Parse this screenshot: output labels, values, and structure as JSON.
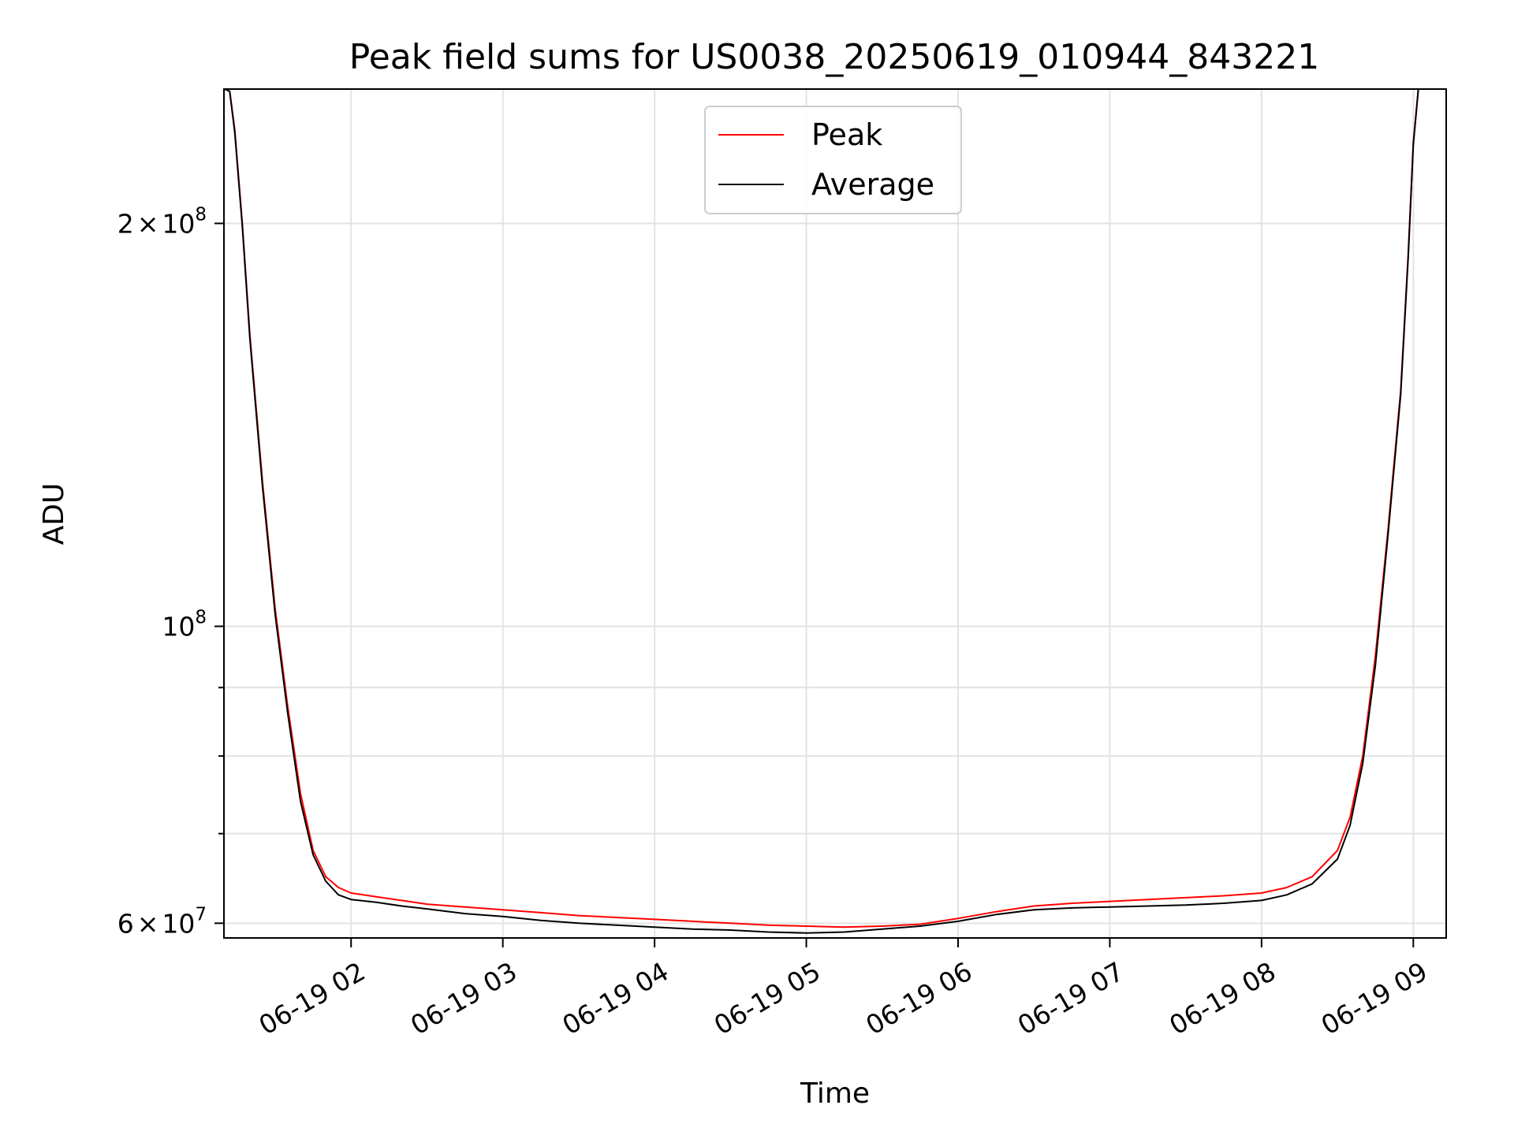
{
  "chart_data": {
    "type": "line",
    "title": "Peak field sums for US0038_20250619_010944_843221",
    "xlabel": "Time",
    "ylabel": "ADU",
    "y_scale": "log",
    "x_range": [
      "06-19 01:09:44",
      "06-19 09:13:00"
    ],
    "ylim": [
      58500000,
      252000000
    ],
    "grid": true,
    "legend_position": "upper-center",
    "x_ticks": [
      {
        "t": "06-19 02:00",
        "label": "06-19 02"
      },
      {
        "t": "06-19 03:00",
        "label": "06-19 03"
      },
      {
        "t": "06-19 04:00",
        "label": "06-19 04"
      },
      {
        "t": "06-19 05:00",
        "label": "06-19 05"
      },
      {
        "t": "06-19 06:00",
        "label": "06-19 06"
      },
      {
        "t": "06-19 07:00",
        "label": "06-19 07"
      },
      {
        "t": "06-19 08:00",
        "label": "06-19 08"
      },
      {
        "t": "06-19 09:00",
        "label": "06-19 09"
      }
    ],
    "y_major_ticks": [
      {
        "value": 60000000,
        "mantissa": "6",
        "times": "×",
        "base": "10",
        "exp": "7"
      },
      {
        "value": 100000000,
        "mantissa": "",
        "times": "",
        "base": "10",
        "exp": "8"
      },
      {
        "value": 200000000,
        "mantissa": "2",
        "times": "×",
        "base": "10",
        "exp": "8"
      }
    ],
    "y_minor_ticks": [
      70000000,
      80000000,
      90000000
    ],
    "series": [
      {
        "name": "Peak",
        "color": "#ff0000",
        "x": [
          "06-19 01:10",
          "06-19 01:12",
          "06-19 01:14",
          "06-19 01:17",
          "06-19 01:20",
          "06-19 01:25",
          "06-19 01:30",
          "06-19 01:35",
          "06-19 01:40",
          "06-19 01:45",
          "06-19 01:50",
          "06-19 01:55",
          "06-19 02:00",
          "06-19 02:10",
          "06-19 02:20",
          "06-19 02:30",
          "06-19 02:45",
          "06-19 03:00",
          "06-19 03:15",
          "06-19 03:30",
          "06-19 03:45",
          "06-19 04:00",
          "06-19 04:15",
          "06-19 04:30",
          "06-19 04:45",
          "06-19 05:00",
          "06-19 05:15",
          "06-19 05:30",
          "06-19 05:45",
          "06-19 06:00",
          "06-19 06:15",
          "06-19 06:30",
          "06-19 06:45",
          "06-19 07:00",
          "06-19 07:15",
          "06-19 07:30",
          "06-19 07:45",
          "06-19 08:00",
          "06-19 08:10",
          "06-19 08:20",
          "06-19 08:30",
          "06-19 08:35",
          "06-19 08:40",
          "06-19 08:45",
          "06-19 08:50",
          "06-19 08:55",
          "06-19 08:58",
          "06-19 09:00",
          "06-19 09:02"
        ],
        "y": [
          252000000,
          251000000,
          235000000,
          200000000,
          165000000,
          128000000,
          103000000,
          87000000,
          75000000,
          68000000,
          65000000,
          63800000,
          63200000,
          62800000,
          62400000,
          62000000,
          61700000,
          61400000,
          61100000,
          60800000,
          60600000,
          60400000,
          60200000,
          60000000,
          59800000,
          59700000,
          59600000,
          59700000,
          59900000,
          60500000,
          61200000,
          61800000,
          62100000,
          62300000,
          62500000,
          62700000,
          62900000,
          63200000,
          63800000,
          65000000,
          68000000,
          72000000,
          80000000,
          95000000,
          118000000,
          150000000,
          190000000,
          230000000,
          252000000
        ]
      },
      {
        "name": "Average",
        "color": "#000000",
        "x": [
          "06-19 01:10",
          "06-19 01:12",
          "06-19 01:14",
          "06-19 01:17",
          "06-19 01:20",
          "06-19 01:25",
          "06-19 01:30",
          "06-19 01:35",
          "06-19 01:40",
          "06-19 01:45",
          "06-19 01:50",
          "06-19 01:55",
          "06-19 02:00",
          "06-19 02:10",
          "06-19 02:20",
          "06-19 02:30",
          "06-19 02:45",
          "06-19 03:00",
          "06-19 03:15",
          "06-19 03:30",
          "06-19 03:45",
          "06-19 04:00",
          "06-19 04:15",
          "06-19 04:30",
          "06-19 04:45",
          "06-19 05:00",
          "06-19 05:15",
          "06-19 05:30",
          "06-19 05:45",
          "06-19 06:00",
          "06-19 06:15",
          "06-19 06:30",
          "06-19 06:45",
          "06-19 07:00",
          "06-19 07:15",
          "06-19 07:30",
          "06-19 07:45",
          "06-19 08:00",
          "06-19 08:10",
          "06-19 08:20",
          "06-19 08:30",
          "06-19 08:35",
          "06-19 08:40",
          "06-19 08:45",
          "06-19 08:50",
          "06-19 08:55",
          "06-19 08:58",
          "06-19 09:00",
          "06-19 09:02"
        ],
        "y": [
          252000000,
          251000000,
          234000000,
          199000000,
          164000000,
          127000000,
          102000000,
          86000000,
          74000000,
          67500000,
          64500000,
          63000000,
          62500000,
          62200000,
          61800000,
          61500000,
          61000000,
          60700000,
          60300000,
          60000000,
          59800000,
          59600000,
          59400000,
          59300000,
          59100000,
          59000000,
          59100000,
          59400000,
          59700000,
          60200000,
          60900000,
          61400000,
          61600000,
          61700000,
          61800000,
          61900000,
          62100000,
          62400000,
          63000000,
          64200000,
          67000000,
          71000000,
          79000000,
          93500000,
          117000000,
          149000000,
          189000000,
          229000000,
          252000000
        ]
      }
    ]
  }
}
